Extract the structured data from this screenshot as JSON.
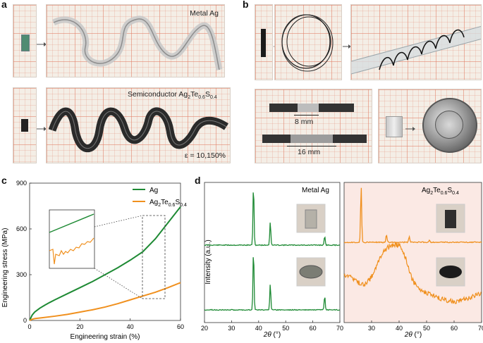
{
  "panels": {
    "a": {
      "label": "a",
      "metal_label": "Metal Ag",
      "semi_label_prefix": "Semiconductor Ag",
      "semi_sub1": "2",
      "semi_mid1": "Te",
      "semi_sub2": "0.6",
      "semi_mid2": "S",
      "semi_sub3": "0.4",
      "strain_text": "ε = 10,150%"
    },
    "b": {
      "label": "b",
      "len1": "8 mm",
      "len2": "16 mm"
    },
    "c": {
      "label": "c"
    },
    "d": {
      "label": "d",
      "metal_label": "Metal Ag",
      "alloy_prefix": "Ag",
      "alloy_sub1": "2",
      "alloy_mid1": "Te",
      "alloy_sub2": "0.6",
      "alloy_mid2": "S",
      "alloy_sub3": "0.4"
    }
  },
  "chart_data": [
    {
      "type": "line",
      "panel": "c",
      "xlabel": "Engineering strain (%)",
      "ylabel": "Engineering stress (MPa)",
      "xlim": [
        0,
        60
      ],
      "ylim": [
        0,
        900
      ],
      "xticks": [
        "0",
        "20",
        "40",
        "60"
      ],
      "yticks": [
        "0",
        "300",
        "600",
        "900"
      ],
      "legend_position": "top-right",
      "series": [
        {
          "name": "Ag",
          "color": "#1e8a34",
          "x": [
            0,
            1,
            2,
            4,
            6,
            8,
            10,
            15,
            20,
            25,
            30,
            35,
            40,
            45,
            50,
            55,
            60
          ],
          "y": [
            0,
            35,
            55,
            80,
            100,
            118,
            135,
            175,
            215,
            255,
            300,
            345,
            395,
            450,
            535,
            640,
            745
          ]
        },
        {
          "name": "Ag2Te0.6S0.4",
          "color": "#f0901e",
          "x": [
            0,
            1,
            2,
            5,
            10,
            15,
            20,
            25,
            30,
            35,
            40,
            45,
            50,
            55,
            60
          ],
          "y": [
            0,
            8,
            12,
            18,
            28,
            40,
            55,
            70,
            88,
            110,
            135,
            160,
            185,
            215,
            248
          ]
        }
      ],
      "legend": [
        {
          "text": "Ag",
          "color": "#1e8a34"
        },
        {
          "text_prefix": "Ag",
          "sub1": "2",
          "mid1": "Te",
          "sub2": "0.6",
          "mid2": "S",
          "sub3": "0.4",
          "color": "#f0901e"
        }
      ]
    },
    {
      "type": "line",
      "panel": "d",
      "xlabel": "2θ (°)",
      "ylabel": "Intensity (a.u.)",
      "xlim": [
        20,
        70
      ],
      "xticks_left": [
        "20",
        "30",
        "40",
        "50",
        "60",
        "70"
      ],
      "xticks_right": [
        "30",
        "40",
        "50",
        "60",
        "70"
      ],
      "series": [
        {
          "name": "Metal Ag top",
          "color": "#1e8a34",
          "peaks_deg": [
            38.1,
            44.3,
            64.4
          ]
        },
        {
          "name": "Metal Ag bottom",
          "color": "#1e8a34",
          "peaks_deg": [
            38.1,
            44.3,
            64.4
          ]
        },
        {
          "name": "alloy top",
          "color": "#f0901e",
          "peaks_deg": [
            26.2,
            35.4,
            43.7,
            51.0
          ]
        },
        {
          "name": "alloy bottom",
          "color": "#f0901e",
          "broad_hump_deg": [
            30,
            42
          ]
        }
      ]
    }
  ]
}
